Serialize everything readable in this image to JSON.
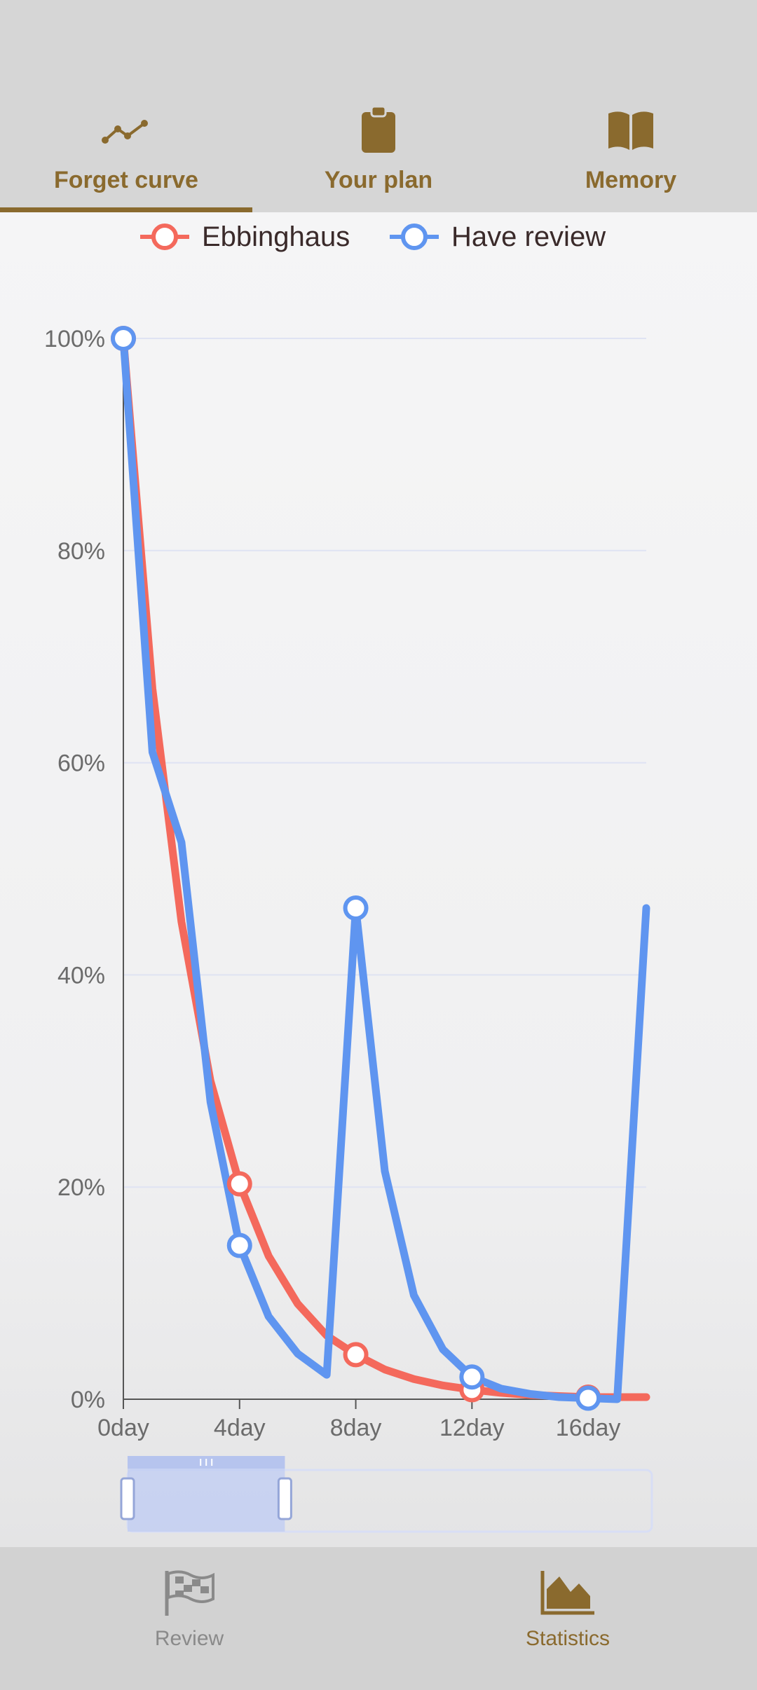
{
  "tabs": [
    {
      "label": "Forget curve",
      "icon": "line-chart-icon",
      "active": true
    },
    {
      "label": "Your plan",
      "icon": "clipboard-icon",
      "active": false
    },
    {
      "label": "Memory",
      "icon": "open-book-icon",
      "active": false
    }
  ],
  "bottom_nav": [
    {
      "label": "Review",
      "icon": "checkered-flag-icon",
      "active": false
    },
    {
      "label": "Statistics",
      "icon": "area-chart-icon",
      "active": true
    }
  ],
  "colors": {
    "accent": "#8a6a2e",
    "series_ebbinghaus": "#f4695c",
    "series_review": "#5f95f0",
    "grid": "#dfe3f3",
    "axis": "#555555",
    "tick_text": "#6b6b6b"
  },
  "chart_data": {
    "type": "line",
    "x_tick_labels": [
      "0day",
      "4day",
      "8day",
      "12day",
      "16day"
    ],
    "y_tick_labels": [
      "0%",
      "20%",
      "40%",
      "60%",
      "80%",
      "100%"
    ],
    "xlim": [
      0,
      18
    ],
    "ylim": [
      0,
      100
    ],
    "grid": true,
    "legend_position": "top-center",
    "series": [
      {
        "name": "Ebbinghaus",
        "x": [
          0,
          1,
          2,
          3,
          4,
          5,
          6,
          7,
          8,
          9,
          10,
          11,
          12,
          13,
          14,
          15,
          16,
          17,
          18
        ],
        "y": [
          100,
          67,
          45,
          30,
          20.3,
          13.5,
          9,
          6,
          4.2,
          2.8,
          1.9,
          1.3,
          0.9,
          0.6,
          0.4,
          0.3,
          0.2,
          0.2,
          0.2
        ],
        "markers_at": [
          0,
          4,
          8,
          12,
          16
        ]
      },
      {
        "name": "Have review",
        "x": [
          0,
          1,
          2,
          3,
          4,
          5,
          6,
          7,
          8,
          9,
          10,
          11,
          12,
          13,
          14,
          15,
          16,
          17,
          18
        ],
        "y": [
          100,
          61,
          52.5,
          28,
          14.5,
          7.8,
          4.3,
          2.3,
          46.3,
          21.5,
          9.8,
          4.7,
          2.1,
          1,
          0.5,
          0.2,
          0.1,
          0,
          46.3
        ],
        "markers_at": [
          0,
          4,
          8,
          12,
          16
        ]
      }
    ],
    "zoom_window": {
      "start": 0,
      "end": 0.3
    }
  }
}
